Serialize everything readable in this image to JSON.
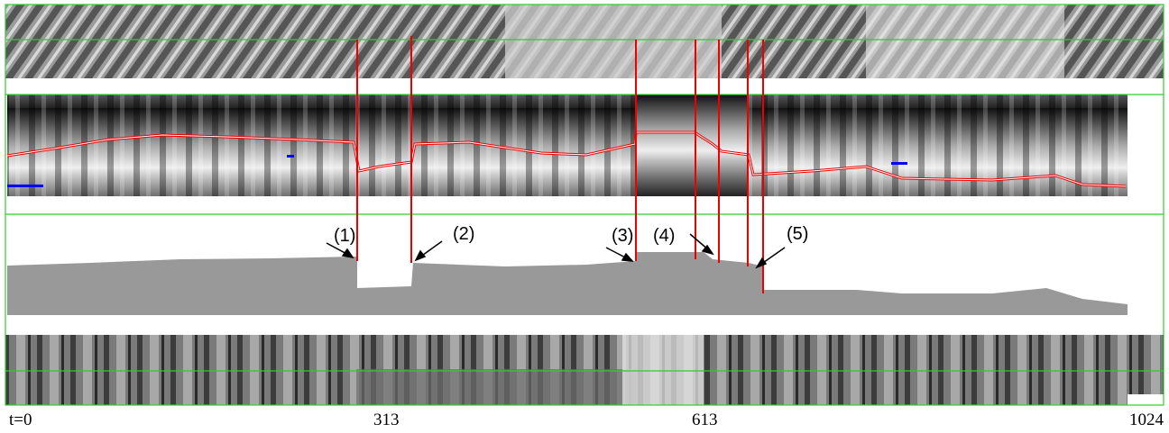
{
  "figure": {
    "event_labels": [
      "(1)",
      "(2)",
      "(3)",
      "(4)",
      "(5)"
    ],
    "time_ticks": [
      "t=0",
      "313",
      "613",
      "1024"
    ]
  }
}
